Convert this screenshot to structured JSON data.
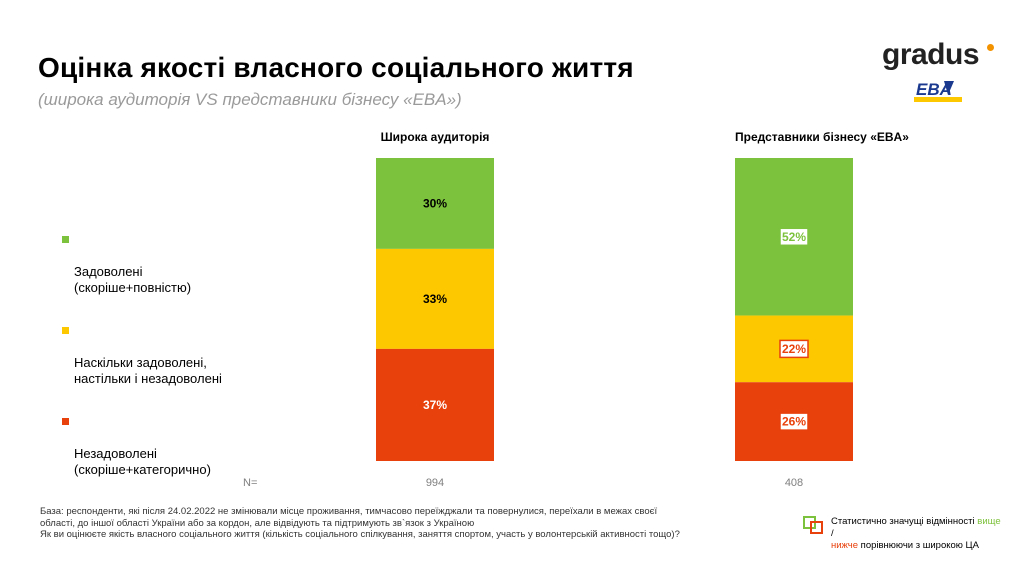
{
  "title": "Оцінка якості власного соціального життя",
  "subtitle": "(широка аудиторія VS представники бізнесу «EBA»)",
  "logo": {
    "brand": "gradus",
    "partner": "EBA"
  },
  "legend": [
    {
      "label": "Задоволені\n(скоріше+повністю)",
      "color": "#7dc23c"
    },
    {
      "label": "Наскільки задоволені,\nнастільки і незадоволені",
      "color": "#fdc800"
    },
    {
      "label": "Незадоволені\n(скоріше+категорично)",
      "color": "#e8410c"
    }
  ],
  "n_label": "N=",
  "chart_data": {
    "type": "bar",
    "stacked": true,
    "orientation": "vertical",
    "categories": [
      "Широка аудиторія",
      "Представники бізнесу «EBA»"
    ],
    "n": [
      "994",
      "408"
    ],
    "series": [
      {
        "name": "Задоволені (скоріше+повністю)",
        "values": [
          30,
          52
        ],
        "labels": [
          "30%",
          "52%"
        ],
        "color": "#7dc23c",
        "significant": [
          false,
          "higher"
        ]
      },
      {
        "name": "Наскільки задоволені, настільки і незадоволені",
        "values": [
          33,
          22
        ],
        "labels": [
          "33%",
          "22%"
        ],
        "color": "#fdc800",
        "significant": [
          false,
          "lower"
        ]
      },
      {
        "name": "Незадоволені (скоріше+категорично)",
        "values": [
          37,
          26
        ],
        "labels": [
          "37%",
          "26%"
        ],
        "color": "#e8410c",
        "significant": [
          false,
          "lower"
        ]
      }
    ],
    "ylim": [
      0,
      100
    ]
  },
  "footnote": {
    "line1": "База: респонденти, які після 24.02.2022 не змінювали місце проживання, тимчасово переїжджали та повернулися, переїхали в межах своєї",
    "line2": "області, до іншої області України або за кордон, але відвідують та підтримують зв`язок з Україною",
    "line3": "Як ви оцінюєте якість власного соціального життя (кількість соціального спілкування, заняття спортом, участь у волонтерській активності тощо)?"
  },
  "significance": {
    "part1": "Статистично значущі відмінності ",
    "higher": "вище",
    "sep": " /",
    "lower": "нижче",
    "part2": " порівнюючи з широкою ЦА",
    "higher_color": "#7dc23c",
    "lower_color": "#e8410c"
  }
}
